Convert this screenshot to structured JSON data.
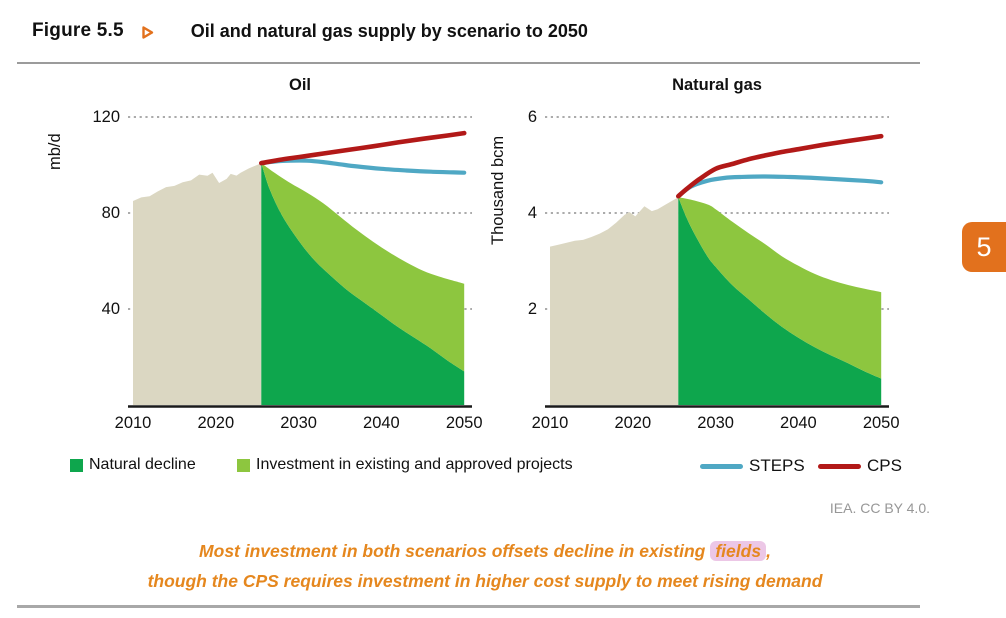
{
  "figure": {
    "label": "Figure 5.5",
    "title": "Oil and natural gas supply by scenario to 2050"
  },
  "page_tab": "5",
  "attribution": "IEA. CC BY 4.0.",
  "caption": {
    "line1_pre": "Most investment in both scenarios offsets decline in existing",
    "line1_highlight": "fields",
    "line1_post": ",",
    "line2": "though the CPS requires investment in higher cost supply to meet rising demand"
  },
  "legend": {
    "items": [
      {
        "label": "Natural decline",
        "swatch": "square",
        "color": "#0EA64D"
      },
      {
        "label": "Investment in existing and approved projects",
        "swatch": "square",
        "color": "#8DC63F"
      },
      {
        "label": "STEPS",
        "swatch": "line",
        "color": "#4FA8C4"
      },
      {
        "label": "CPS",
        "swatch": "line",
        "color": "#B21918"
      }
    ]
  },
  "colors": {
    "accent_orange": "#E2711D",
    "caption_orange": "#E5871E",
    "highlight_pink": "#ECC7E6",
    "historical_beige": "#DBD7C2",
    "natural_decline_green": "#0EA64D",
    "investment_green": "#8DC63F",
    "steps_blue": "#4FA8C4",
    "cps_red": "#B21918",
    "gridline_grey": "#ABABAB",
    "attribution_grey": "#979797"
  },
  "icons": {
    "figure_arrow": "triangle-right-icon"
  },
  "chart_data": [
    {
      "type": "area",
      "title": "Oil",
      "ylabel": "mb/d",
      "ylim": [
        0,
        130
      ],
      "yticks": [
        40,
        80,
        120
      ],
      "xlim": [
        2010,
        2050
      ],
      "xticks": [
        2010,
        2020,
        2030,
        2040,
        2050
      ],
      "grid": "dotted-horizontal",
      "legend_position": "below",
      "series": [
        {
          "name": "Historical supply",
          "style": "area",
          "color": "#DBD7C2",
          "x": [
            2010,
            2011,
            2012,
            2013,
            2014,
            2015,
            2016,
            2017,
            2018,
            2019,
            2019.6,
            2020.4,
            2021.3,
            2021.8,
            2022.5,
            2023,
            2024,
            2025.5
          ],
          "y": [
            85,
            86.5,
            87,
            89,
            90.8,
            91.3,
            92.8,
            93.6,
            96,
            95.5,
            96.8,
            92.5,
            94.2,
            96.3,
            95.6,
            96.8,
            98.6,
            100.8
          ]
        },
        {
          "name": "Natural decline",
          "style": "area",
          "color": "#0EA64D",
          "x": [
            2025.5,
            2026.5,
            2028,
            2030,
            2032,
            2034,
            2036,
            2038,
            2040,
            2042,
            2044,
            2046,
            2048,
            2050
          ],
          "y": [
            100.8,
            90,
            79,
            68.5,
            60,
            53.5,
            47.5,
            42.5,
            37.5,
            32.5,
            28,
            23.5,
            18.5,
            14
          ]
        },
        {
          "name": "Investment in existing and approved projects",
          "style": "band",
          "color": "#8DC63F",
          "x": [
            2025.5,
            2027,
            2029,
            2031,
            2033,
            2035,
            2037,
            2039,
            2041,
            2043,
            2045,
            2047,
            2049,
            2050
          ],
          "y": [
            100.8,
            97,
            92.5,
            88.5,
            84,
            78.5,
            73,
            68,
            63.5,
            59.5,
            56,
            53.5,
            51.5,
            50.5
          ]
        },
        {
          "name": "STEPS",
          "style": "line",
          "color": "#4FA8C4",
          "x": [
            2025.5,
            2027,
            2029,
            2031,
            2033,
            2035,
            2037,
            2040,
            2043,
            2046,
            2050
          ],
          "y": [
            100.8,
            101.4,
            101.8,
            101.8,
            101.2,
            100.3,
            99.4,
            98.4,
            97.7,
            97.2,
            96.8
          ]
        },
        {
          "name": "CPS",
          "style": "line",
          "color": "#B21918",
          "x": [
            2025.5,
            2028,
            2030,
            2033,
            2036,
            2039,
            2042,
            2045,
            2048,
            2050
          ],
          "y": [
            100.8,
            102.3,
            103.3,
            104.8,
            106.3,
            107.8,
            109.4,
            110.9,
            112.3,
            113.3
          ]
        }
      ]
    },
    {
      "type": "area",
      "title": "Natural gas",
      "ylabel": "Thousand bcm",
      "ylim": [
        0,
        6.5
      ],
      "yticks": [
        2,
        4,
        6
      ],
      "xlim": [
        2010,
        2050
      ],
      "xticks": [
        2010,
        2020,
        2030,
        2040,
        2050
      ],
      "grid": "dotted-horizontal",
      "legend_position": "below",
      "series": [
        {
          "name": "Historical supply",
          "style": "area",
          "color": "#DBD7C2",
          "x": [
            2010,
            2011,
            2012,
            2013,
            2014,
            2015,
            2016,
            2017,
            2018,
            2019,
            2019.6,
            2020.3,
            2021.4,
            2022.3,
            2023,
            2024,
            2025.5
          ],
          "y": [
            3.3,
            3.34,
            3.38,
            3.42,
            3.44,
            3.5,
            3.57,
            3.66,
            3.8,
            3.96,
            4.02,
            3.93,
            4.14,
            4.04,
            4.08,
            4.18,
            4.33
          ]
        },
        {
          "name": "Natural decline",
          "style": "area",
          "color": "#0EA64D",
          "x": [
            2025.5,
            2026.5,
            2027.5,
            2029,
            2030,
            2032,
            2034,
            2036,
            2038,
            2040,
            2042,
            2044,
            2046,
            2048,
            2050
          ],
          "y": [
            4.33,
            3.9,
            3.55,
            3.1,
            2.88,
            2.5,
            2.2,
            1.9,
            1.63,
            1.4,
            1.2,
            1.03,
            0.87,
            0.7,
            0.55
          ]
        },
        {
          "name": "Investment in existing and approved projects",
          "style": "band",
          "color": "#8DC63F",
          "x": [
            2025.5,
            2027,
            2029,
            2030,
            2032,
            2034,
            2036,
            2038,
            2040,
            2042,
            2044,
            2046,
            2048,
            2050
          ],
          "y": [
            4.33,
            4.28,
            4.18,
            4.08,
            3.82,
            3.58,
            3.35,
            3.1,
            2.9,
            2.73,
            2.6,
            2.5,
            2.42,
            2.35
          ]
        },
        {
          "name": "STEPS",
          "style": "line",
          "color": "#4FA8C4",
          "x": [
            2025.5,
            2027,
            2029,
            2031,
            2033,
            2036,
            2039,
            2042,
            2045,
            2048,
            2050
          ],
          "y": [
            4.35,
            4.55,
            4.67,
            4.73,
            4.75,
            4.76,
            4.75,
            4.73,
            4.7,
            4.67,
            4.64
          ]
        },
        {
          "name": "CPS",
          "style": "line",
          "color": "#B21918",
          "x": [
            2025.5,
            2026.5,
            2028,
            2030,
            2032,
            2034,
            2036,
            2038,
            2040,
            2043,
            2046,
            2048,
            2050
          ],
          "y": [
            4.35,
            4.5,
            4.7,
            4.92,
            5.02,
            5.12,
            5.2,
            5.27,
            5.33,
            5.42,
            5.5,
            5.55,
            5.6
          ]
        }
      ]
    }
  ]
}
